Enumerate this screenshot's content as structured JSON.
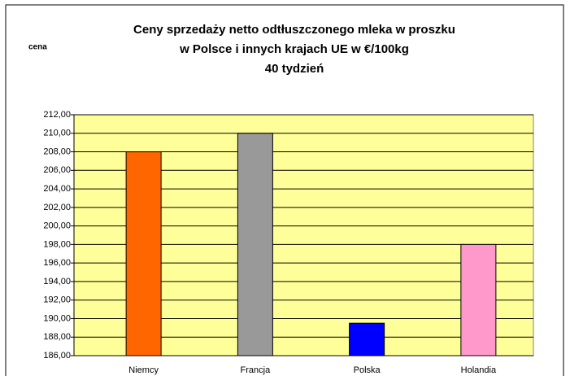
{
  "chart_data": {
    "type": "bar",
    "title": [
      "Ceny sprzedaży netto odtłuszczonego mleka w proszku",
      "w Polsce i innych krajach UE w €/100kg",
      "40 tydzień"
    ],
    "y_label": "cena",
    "categories": [
      "Niemcy",
      "Francja",
      "Polska",
      "Holandia"
    ],
    "values": [
      208,
      210,
      189.5,
      198
    ],
    "colors": [
      "#ff6600",
      "#999999",
      "#0000ff",
      "#ff99cc"
    ],
    "ylim": [
      186,
      212
    ],
    "yticks": [
      {
        "value": 186,
        "label": "186,00"
      },
      {
        "value": 188,
        "label": "188,00"
      },
      {
        "value": 190,
        "label": "190,00"
      },
      {
        "value": 192,
        "label": "192,00"
      },
      {
        "value": 194,
        "label": "194,00"
      },
      {
        "value": 196,
        "label": "196,00"
      },
      {
        "value": 198,
        "label": "198,00"
      },
      {
        "value": 200,
        "label": "200,00"
      },
      {
        "value": 202,
        "label": "202,00"
      },
      {
        "value": 204,
        "label": "204,00"
      },
      {
        "value": 206,
        "label": "206,00"
      },
      {
        "value": 208,
        "label": "208,00"
      },
      {
        "value": 210,
        "label": "210,00"
      },
      {
        "value": 212,
        "label": "212,00"
      }
    ],
    "grid": true,
    "plot_background": "#ffff99"
  }
}
